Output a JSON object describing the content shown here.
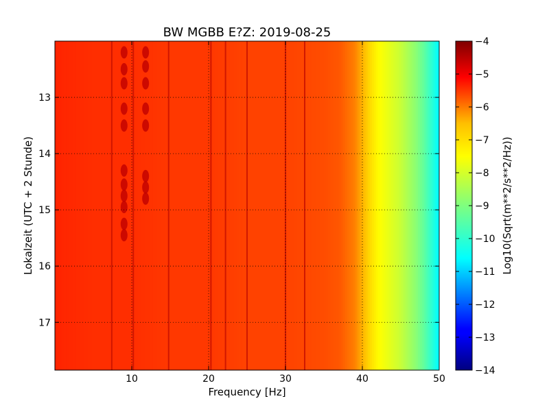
{
  "chart_data": {
    "type": "heatmap",
    "title": "BW MGBB E?Z: 2019-08-25",
    "xlabel": "Frequency [Hz]",
    "ylabel": "Lokalzeit (UTC + 2 Stunde)",
    "xlim": [
      0,
      50
    ],
    "ylim": [
      17.85,
      12.0
    ],
    "x_ticks": [
      10,
      20,
      30,
      40,
      50
    ],
    "x_tick_labels": [
      "10",
      "20",
      "30",
      "40",
      "50"
    ],
    "y_ticks": [
      13,
      14,
      15,
      16,
      17
    ],
    "y_tick_labels": [
      "13",
      "14",
      "15",
      "16",
      "17"
    ],
    "grid": true,
    "colormap": "jet",
    "colorbar": {
      "label": "Log10(Sqrt(m**2/s**2/Hz))",
      "range": [
        -14,
        -4
      ],
      "ticks": [
        -4,
        -5,
        -6,
        -7,
        -8,
        -9,
        -10,
        -11,
        -12,
        -13,
        -14
      ],
      "tick_labels": [
        "−4",
        "−5",
        "−6",
        "−7",
        "−8",
        "−9",
        "−10",
        "−11",
        "−12",
        "−13",
        "−14"
      ]
    },
    "spectral_profile": {
      "frequency_hz": [
        0,
        5,
        10,
        15,
        20,
        25,
        30,
        35,
        37,
        39,
        40,
        41,
        42,
        43,
        44,
        45,
        46,
        47,
        48,
        49,
        50
      ],
      "level": [
        -5.6,
        -5.7,
        -5.7,
        -5.8,
        -5.8,
        -5.9,
        -5.9,
        -6.0,
        -6.1,
        -6.5,
        -7.0,
        -7.4,
        -7.7,
        -7.9,
        -8.1,
        -8.3,
        -8.6,
        -8.9,
        -9.3,
        -9.8,
        -10.3
      ]
    },
    "spectral_lines_hz": [
      7.4,
      10.2,
      14.8,
      20.3,
      22.2,
      25.0,
      30.0,
      32.5
    ],
    "bursts": [
      {
        "frequency_hz": 9.0,
        "times": [
          12.2,
          12.5,
          12.75,
          13.2,
          13.5,
          14.3,
          14.55,
          14.75,
          14.95,
          15.25,
          15.45
        ]
      },
      {
        "frequency_hz": 11.8,
        "times": [
          12.2,
          12.45,
          12.75,
          13.2,
          13.5,
          14.4,
          14.6,
          14.8
        ]
      }
    ]
  }
}
